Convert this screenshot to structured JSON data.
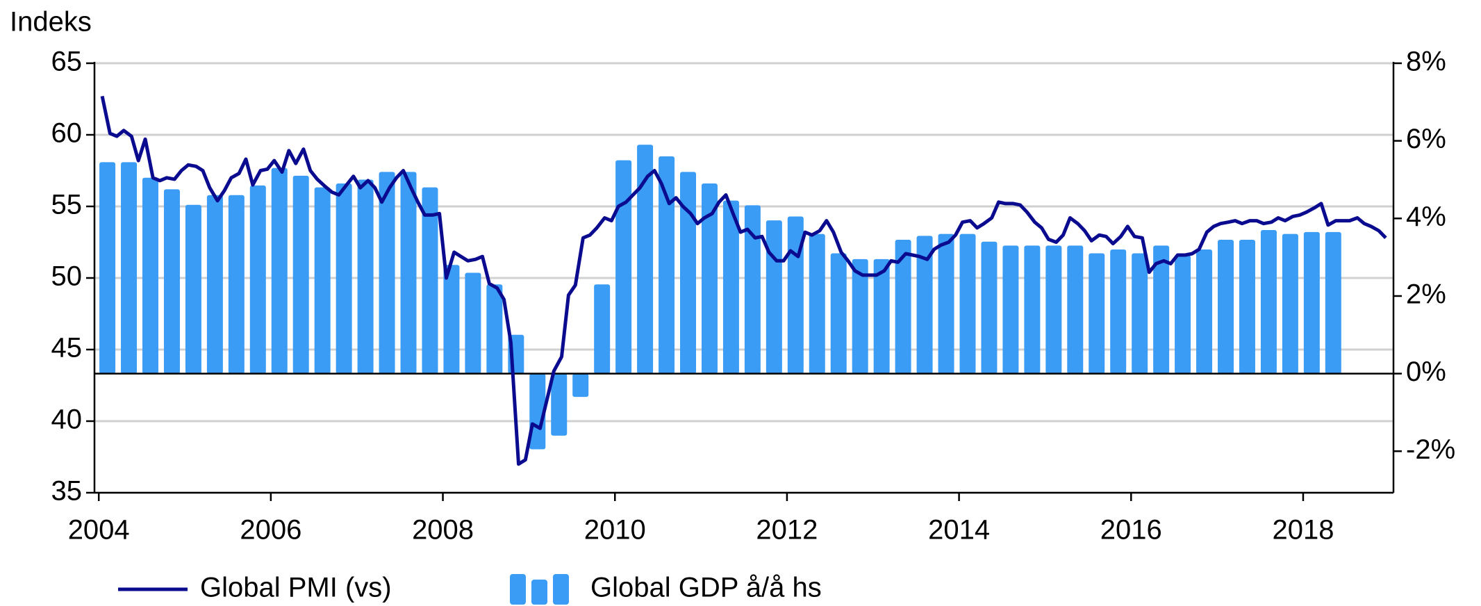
{
  "chart_data": {
    "type": "combo",
    "y_label": "Indeks",
    "xlim": [
      2003.95,
      2019.05
    ],
    "xticks": [
      2004,
      2006,
      2008,
      2010,
      2012,
      2014,
      2016,
      2018
    ],
    "ylim": [
      35,
      65
    ],
    "yticks": [
      35,
      40,
      45,
      50,
      55,
      60,
      65
    ],
    "y2lim": [
      -3.07,
      8
    ],
    "y2ticks": [
      {
        "value": -2,
        "label": "-2%"
      },
      {
        "value": 0,
        "label": "0%"
      },
      {
        "value": 2,
        "label": "2%"
      },
      {
        "value": 4,
        "label": "4%"
      },
      {
        "value": 6,
        "label": "6%"
      },
      {
        "value": 8,
        "label": "8%"
      }
    ],
    "grid": true,
    "legend": "bottom",
    "series": [
      {
        "name": "Global PMI (vs)",
        "type": "line",
        "color": "#0b0b8f",
        "x": [
          2004.04,
          2004.13,
          2004.21,
          2004.29,
          2004.38,
          2004.46,
          2004.54,
          2004.63,
          2004.71,
          2004.79,
          2004.88,
          2004.96,
          2005.04,
          2005.13,
          2005.21,
          2005.29,
          2005.38,
          2005.46,
          2005.54,
          2005.63,
          2005.71,
          2005.79,
          2005.88,
          2005.96,
          2006.04,
          2006.13,
          2006.21,
          2006.29,
          2006.38,
          2006.46,
          2006.54,
          2006.63,
          2006.71,
          2006.79,
          2006.88,
          2006.96,
          2007.04,
          2007.13,
          2007.21,
          2007.29,
          2007.38,
          2007.46,
          2007.54,
          2007.63,
          2007.71,
          2007.79,
          2007.88,
          2007.96,
          2008.04,
          2008.13,
          2008.21,
          2008.29,
          2008.38,
          2008.46,
          2008.54,
          2008.63,
          2008.71,
          2008.79,
          2008.88,
          2008.96,
          2009.04,
          2009.13,
          2009.21,
          2009.29,
          2009.38,
          2009.46,
          2009.54,
          2009.63,
          2009.71,
          2009.79,
          2009.88,
          2009.96,
          2010.04,
          2010.13,
          2010.21,
          2010.29,
          2010.38,
          2010.46,
          2010.54,
          2010.63,
          2010.71,
          2010.79,
          2010.88,
          2010.96,
          2011.04,
          2011.13,
          2011.21,
          2011.29,
          2011.38,
          2011.46,
          2011.54,
          2011.63,
          2011.71,
          2011.79,
          2011.88,
          2011.96,
          2012.04,
          2012.13,
          2012.21,
          2012.29,
          2012.38,
          2012.46,
          2012.54,
          2012.63,
          2012.71,
          2012.79,
          2012.88,
          2012.96,
          2013.04,
          2013.13,
          2013.21,
          2013.29,
          2013.38,
          2013.46,
          2013.54,
          2013.63,
          2013.71,
          2013.79,
          2013.88,
          2013.96,
          2014.04,
          2014.13,
          2014.21,
          2014.29,
          2014.38,
          2014.46,
          2014.54,
          2014.63,
          2014.71,
          2014.79,
          2014.88,
          2014.96,
          2015.04,
          2015.13,
          2015.21,
          2015.29,
          2015.38,
          2015.46,
          2015.54,
          2015.63,
          2015.71,
          2015.79,
          2015.88,
          2015.96,
          2016.04,
          2016.13,
          2016.21,
          2016.29,
          2016.38,
          2016.46,
          2016.54,
          2016.63,
          2016.71,
          2016.79,
          2016.88,
          2016.96,
          2017.04,
          2017.13,
          2017.21,
          2017.29,
          2017.38,
          2017.46,
          2017.54,
          2017.63,
          2017.71,
          2017.79,
          2017.88,
          2017.96,
          2018.04,
          2018.13,
          2018.21,
          2018.29,
          2018.38,
          2018.46,
          2018.54,
          2018.63,
          2018.71,
          2018.79,
          2018.88,
          2018.96
        ],
        "values": [
          62.7,
          60.1,
          59.9,
          60.3,
          59.9,
          58.2,
          59.7,
          57.0,
          56.8,
          57.0,
          56.9,
          57.5,
          57.9,
          57.8,
          57.5,
          56.3,
          55.4,
          56.1,
          57.0,
          57.3,
          58.3,
          56.5,
          57.5,
          57.6,
          58.2,
          57.4,
          58.9,
          58.0,
          59.0,
          57.5,
          56.9,
          56.4,
          56.0,
          55.8,
          56.5,
          57.1,
          56.3,
          56.8,
          56.3,
          55.3,
          56.3,
          57.0,
          57.5,
          56.3,
          55.3,
          54.4,
          54.4,
          54.5,
          50.0,
          51.8,
          51.5,
          51.2,
          51.3,
          51.5,
          49.6,
          49.3,
          48.5,
          45.5,
          37.0,
          37.3,
          39.8,
          39.5,
          41.5,
          43.5,
          44.5,
          48.8,
          49.5,
          52.8,
          53.0,
          53.5,
          54.2,
          54.0,
          55.0,
          55.3,
          55.8,
          56.3,
          57.1,
          57.5,
          56.6,
          55.2,
          55.6,
          55.0,
          54.5,
          53.8,
          54.2,
          54.5,
          55.3,
          55.8,
          54.4,
          53.2,
          53.4,
          52.8,
          52.9,
          51.8,
          51.2,
          51.2,
          51.9,
          51.5,
          53.2,
          53.0,
          53.3,
          54.0,
          53.2,
          51.8,
          51.2,
          50.5,
          50.2,
          50.2,
          50.2,
          50.5,
          51.2,
          51.1,
          51.7,
          51.6,
          51.5,
          51.3,
          52.0,
          52.3,
          52.5,
          53.0,
          53.9,
          54.0,
          53.5,
          53.8,
          54.2,
          55.3,
          55.2,
          55.2,
          55.1,
          54.6,
          53.9,
          53.5,
          52.7,
          52.5,
          53.0,
          54.2,
          53.8,
          53.3,
          52.6,
          53.0,
          52.9,
          52.4,
          52.9,
          53.6,
          52.9,
          52.8,
          50.4,
          51.0,
          51.2,
          51.0,
          51.6,
          51.6,
          51.7,
          52.0,
          53.2,
          53.6,
          53.8,
          53.9,
          54.0,
          53.8,
          54.0,
          54.0,
          53.8,
          53.9,
          54.2,
          54.0,
          54.3,
          54.4,
          54.6,
          54.9,
          55.2,
          53.7,
          54.0,
          54.0,
          54.0,
          54.2,
          53.8,
          53.6,
          53.3,
          52.8
        ]
      },
      {
        "name": "Global GDP å/å hs",
        "type": "bar",
        "axis": "y2",
        "color": "#3a9cf4",
        "x": [
          2004.1,
          2004.35,
          2004.6,
          2004.85,
          2005.1,
          2005.35,
          2005.6,
          2005.85,
          2006.1,
          2006.35,
          2006.6,
          2006.85,
          2007.1,
          2007.35,
          2007.6,
          2007.85,
          2008.1,
          2008.35,
          2008.6,
          2008.85,
          2009.1,
          2009.35,
          2009.6,
          2009.85,
          2010.1,
          2010.35,
          2010.6,
          2010.85,
          2011.1,
          2011.35,
          2011.6,
          2011.85,
          2012.1,
          2012.35,
          2012.6,
          2012.85,
          2013.1,
          2013.35,
          2013.6,
          2013.85,
          2014.1,
          2014.35,
          2014.6,
          2014.85,
          2015.1,
          2015.35,
          2015.6,
          2015.85,
          2016.1,
          2016.35,
          2016.6,
          2016.85,
          2017.1,
          2017.35,
          2017.6,
          2017.85,
          2018.1,
          2018.35
        ],
        "values": [
          5.45,
          5.45,
          5.05,
          4.75,
          4.35,
          4.6,
          4.6,
          4.85,
          5.3,
          5.1,
          4.8,
          4.9,
          5.0,
          5.2,
          5.2,
          4.8,
          2.8,
          2.6,
          2.3,
          1.0,
          -1.95,
          -1.6,
          -0.6,
          2.3,
          5.5,
          5.9,
          5.6,
          5.2,
          4.9,
          4.46,
          4.34,
          3.95,
          4.05,
          3.6,
          3.1,
          2.95,
          2.95,
          3.45,
          3.55,
          3.6,
          3.6,
          3.4,
          3.3,
          3.3,
          3.3,
          3.3,
          3.1,
          3.2,
          3.1,
          3.3,
          3.05,
          3.2,
          3.45,
          3.45,
          3.7,
          3.6,
          3.65,
          3.65
        ]
      }
    ]
  }
}
